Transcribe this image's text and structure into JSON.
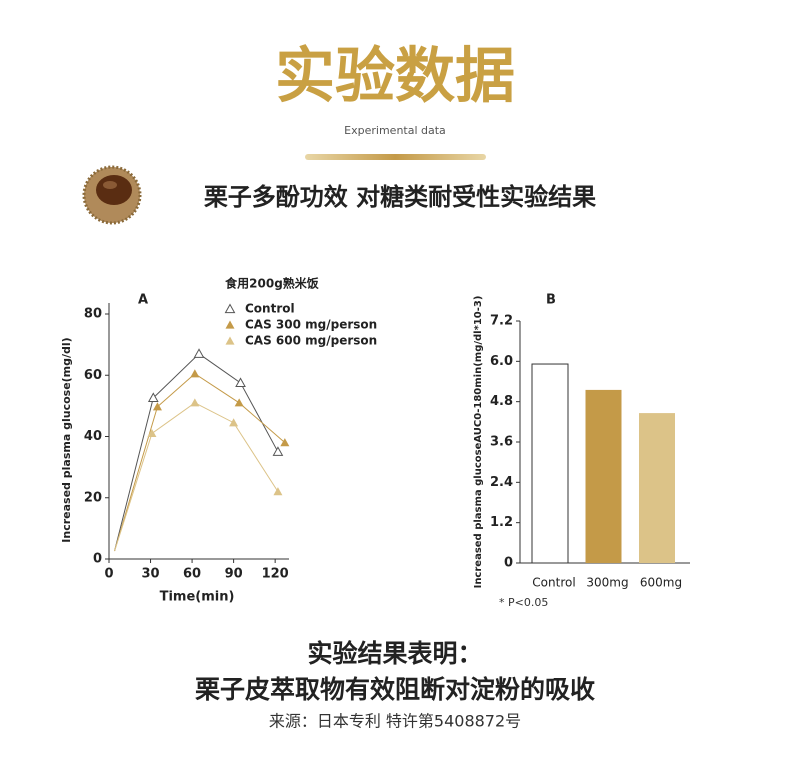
{
  "header": {
    "title": "实验数据",
    "subtitle": "Experimental data",
    "section_title": "栗子多酚功效 对糖类耐受性实验结果"
  },
  "chart_data": [
    {
      "type": "line",
      "label": "A",
      "title": "食用200g熟米饭",
      "x_label": "Time(min)",
      "y_label": "Increased plasma glucose(mg/dl)",
      "xlim": [
        0,
        130
      ],
      "xticks": [
        0,
        30,
        60,
        90,
        120
      ],
      "ylim": [
        0,
        80
      ],
      "yticks": [
        0,
        20,
        40,
        60,
        80
      ],
      "series": [
        {
          "name": "Control",
          "color": "#555555",
          "marker": "open",
          "x": [
            4,
            32,
            65,
            95,
            122
          ],
          "values": [
            2.6,
            52.6,
            67,
            57.5,
            35
          ]
        },
        {
          "name": "CAS 300 mg/person",
          "color": "#c49a48",
          "marker": "filled",
          "x": [
            4,
            35,
            62,
            94,
            127
          ],
          "values": [
            2.6,
            49.7,
            60.5,
            51,
            38
          ]
        },
        {
          "name": "CAS 600 mg/person",
          "color": "#dcc388",
          "marker": "filled",
          "x": [
            4,
            31,
            62,
            90,
            122
          ],
          "values": [
            2.6,
            41,
            51,
            44.5,
            22
          ]
        }
      ]
    },
    {
      "type": "bar",
      "label": "B",
      "y_label": "Increased plasma glucoseAUC0-180min(mg/dl*10-3)",
      "note": "* P<0.05",
      "categories": [
        "Control",
        "300mg",
        "600mg"
      ],
      "values": [
        5.92,
        5.15,
        4.46
      ],
      "colors": [
        "#ffffff",
        "#c49a48",
        "#dcc388"
      ],
      "ylim": [
        0,
        7.2
      ],
      "yticks": [
        0,
        1.2,
        2.4,
        3.6,
        4.8,
        {
          "value": 6,
          "label": "6.0"
        },
        7.2
      ]
    }
  ],
  "footer": {
    "line1": "实验结果表明：",
    "line2": "栗子皮萃取物有效阻断对淀粉的吸收",
    "source": "来源：日本专利 特许第5408872号"
  }
}
